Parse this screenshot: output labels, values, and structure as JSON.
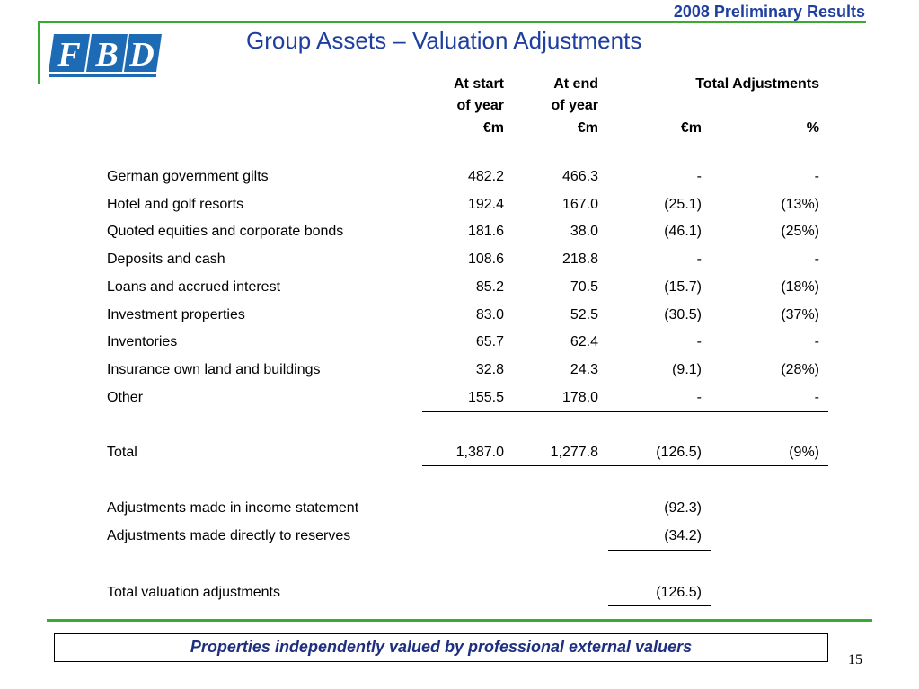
{
  "header": {
    "tag": "2008 Preliminary Results",
    "title": "Group Assets – Valuation Adjustments",
    "logo": [
      "F",
      "B",
      "D"
    ]
  },
  "table": {
    "head": [
      [
        "At start",
        "At end",
        "Total Adjustments",
        ""
      ],
      [
        "of year",
        "of year",
        "",
        ""
      ],
      [
        "€m",
        "€m",
        "€m",
        "%"
      ]
    ],
    "rows": [
      [
        "German government gilts",
        "482.2",
        "466.3",
        "-",
        "-"
      ],
      [
        "Hotel and golf resorts",
        "192.4",
        "167.0",
        "(25.1)",
        "(13%)"
      ],
      [
        "Quoted equities and corporate bonds",
        "181.6",
        "38.0",
        "(46.1)",
        "(25%)"
      ],
      [
        "Deposits and cash",
        "108.6",
        "218.8",
        "-",
        "-"
      ],
      [
        "Loans and accrued interest",
        "85.2",
        "70.5",
        "(15.7)",
        "(18%)"
      ],
      [
        "Investment properties",
        "83.0",
        "52.5",
        "(30.5)",
        "(37%)"
      ],
      [
        "Inventories",
        "65.7",
        "62.4",
        "-",
        "-"
      ],
      [
        "Insurance own land and buildings",
        "32.8",
        "24.3",
        "(9.1)",
        "(28%)"
      ],
      [
        "Other",
        "155.5",
        "178.0",
        "-",
        "-"
      ]
    ],
    "total": [
      "Total",
      "1,387.0",
      "1,277.8",
      "(126.5)",
      "(9%)"
    ],
    "adjustments": [
      [
        "Adjustments made in income statement",
        "(92.3)"
      ],
      [
        "Adjustments made directly to reserves",
        "(34.2)"
      ]
    ],
    "total_adjustments": [
      "Total valuation adjustments",
      "(126.5)"
    ]
  },
  "footer": {
    "note": "Properties independently valued by professional external valuers",
    "page": "15"
  }
}
